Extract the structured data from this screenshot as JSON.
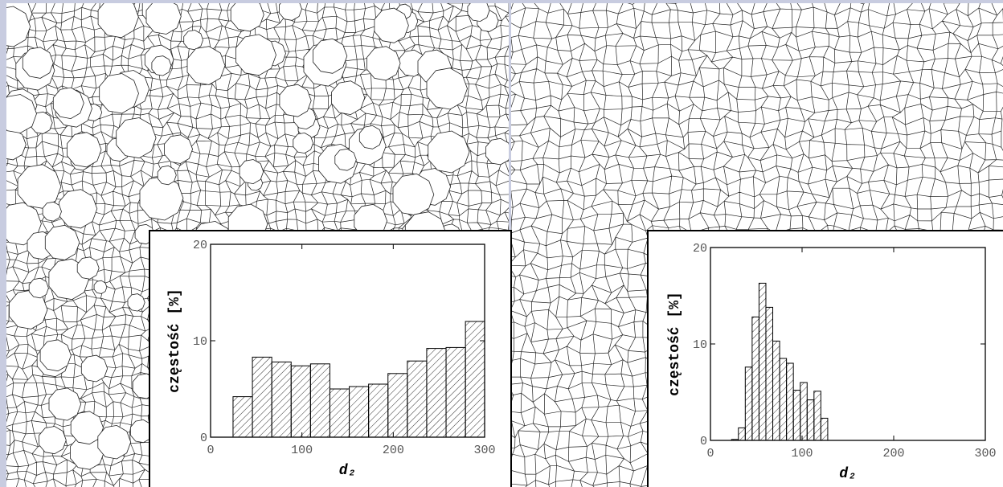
{
  "chart_data": [
    {
      "type": "histogram",
      "xlabel": "d₂",
      "ylabel": "częstość [%]",
      "bins": [
        24.6,
        45.8,
        67,
        88.2,
        109.4,
        130.6,
        151.8,
        173,
        194.2,
        215.4,
        236.6,
        257.8,
        279,
        300
      ],
      "values": [
        4.2,
        8.3,
        7.8,
        7.4,
        7.6,
        5.0,
        5.25,
        5.5,
        6.6,
        7.9,
        9.2,
        9.3,
        12.0
      ],
      "xlim": [
        0,
        300
      ],
      "ylim": [
        0,
        20
      ],
      "xticks": [
        0,
        100,
        200,
        300
      ],
      "yticks": [
        0,
        10,
        20
      ],
      "color": "#000000"
    },
    {
      "type": "histogram",
      "xlabel": "d₂",
      "ylabel": "częstość [%]",
      "bins": [
        23,
        30.5,
        38,
        45.5,
        53,
        60.5,
        68,
        75.5,
        83,
        90.5,
        98,
        105.5,
        113,
        120.5,
        128
      ],
      "values": [
        0.1,
        1.3,
        7.6,
        12.8,
        16.3,
        13.8,
        10.3,
        8.5,
        8.0,
        5.2,
        6.0,
        4.2,
        5.1,
        2.3
      ],
      "xlim": [
        0,
        300
      ],
      "ylim": [
        0,
        20
      ],
      "xticks": [
        0,
        100,
        200,
        300
      ],
      "yticks": [
        0,
        10,
        20
      ],
      "color": "#000000"
    }
  ]
}
